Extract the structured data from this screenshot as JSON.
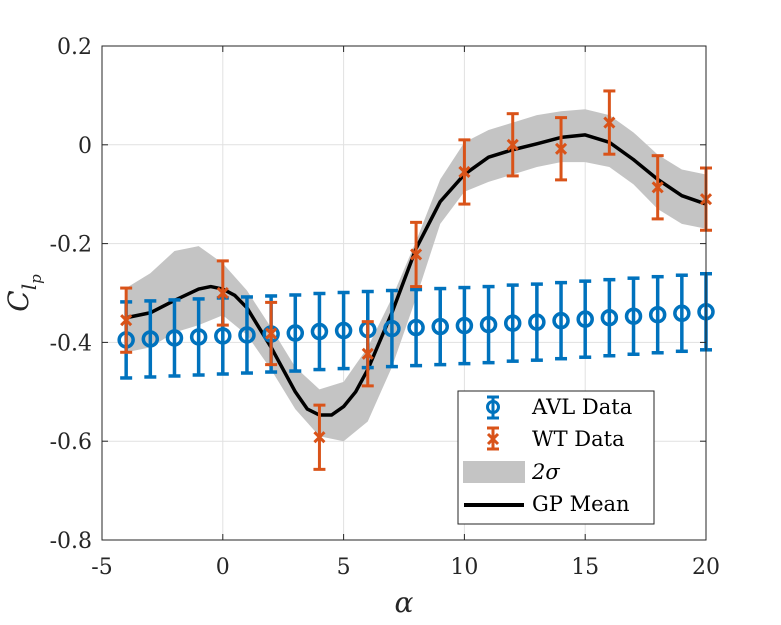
{
  "chart_data": {
    "type": "scatter",
    "xlabel": "α",
    "ylabel": "C_lp",
    "xlim": [
      -5,
      20
    ],
    "ylim": [
      -0.8,
      0.2
    ],
    "xticks": [
      "-5",
      "0",
      "5",
      "10",
      "15",
      "20"
    ],
    "yticks": [
      "0.2",
      "0",
      "-0.2",
      "-0.4",
      "-0.6",
      "-0.8"
    ],
    "grid": true,
    "legend_position": "bottom-right",
    "colors": {
      "avl": "#0072BD",
      "wt": "#D95319",
      "band": "#C4C4C4",
      "mean": "#000000"
    },
    "series": [
      {
        "name": "AVL Data",
        "marker": "circle",
        "x": [
          -4,
          -3,
          -2,
          -1,
          0,
          1,
          2,
          3,
          4,
          5,
          6,
          7,
          8,
          9,
          10,
          11,
          12,
          13,
          14,
          15,
          16,
          17,
          18,
          19,
          20
        ],
        "y": [
          -0.395,
          -0.393,
          -0.391,
          -0.389,
          -0.387,
          -0.385,
          -0.383,
          -0.381,
          -0.378,
          -0.376,
          -0.374,
          -0.372,
          -0.37,
          -0.368,
          -0.366,
          -0.364,
          -0.361,
          -0.359,
          -0.356,
          -0.353,
          -0.35,
          -0.347,
          -0.344,
          -0.341,
          -0.338
        ],
        "err": 0.077
      },
      {
        "name": "WT Data",
        "marker": "x",
        "x": [
          -4,
          0,
          2,
          4,
          6,
          8,
          10,
          12,
          14,
          16,
          18,
          20
        ],
        "y": [
          -0.355,
          -0.3,
          -0.382,
          -0.592,
          -0.423,
          -0.222,
          -0.055,
          0.0,
          -0.008,
          0.045,
          -0.086,
          -0.11
        ],
        "err": [
          0.065,
          0.065,
          0.063,
          0.065,
          0.065,
          0.065,
          0.065,
          0.063,
          0.063,
          0.064,
          0.064,
          0.063
        ]
      },
      {
        "name": "2σ",
        "type": "area",
        "x": [
          -4,
          -3,
          -2,
          -1,
          0,
          1,
          2,
          3,
          4,
          5,
          6,
          7,
          8,
          9,
          10,
          11,
          12,
          13,
          14,
          15,
          16,
          17,
          18,
          19,
          20
        ],
        "upper": [
          -0.29,
          -0.26,
          -0.215,
          -0.205,
          -0.24,
          -0.295,
          -0.37,
          -0.45,
          -0.495,
          -0.48,
          -0.41,
          -0.31,
          -0.195,
          -0.07,
          0.005,
          0.03,
          0.045,
          0.06,
          0.068,
          0.072,
          0.06,
          0.025,
          -0.02,
          -0.05,
          -0.06
        ],
        "lower": [
          -0.42,
          -0.41,
          -0.38,
          -0.365,
          -0.345,
          -0.385,
          -0.455,
          -0.535,
          -0.59,
          -0.6,
          -0.56,
          -0.45,
          -0.31,
          -0.16,
          -0.095,
          -0.075,
          -0.06,
          -0.045,
          -0.035,
          -0.035,
          -0.045,
          -0.08,
          -0.13,
          -0.16,
          -0.17
        ]
      },
      {
        "name": "GP Mean",
        "type": "line",
        "x": [
          -4,
          -3,
          -2,
          -1,
          -0.5,
          0,
          0.5,
          1,
          2,
          3,
          3.5,
          4,
          4.5,
          5,
          5.5,
          6,
          7,
          8,
          9,
          10,
          11,
          12,
          13,
          14,
          15,
          16,
          17,
          18,
          19,
          20
        ],
        "y": [
          -0.35,
          -0.34,
          -0.315,
          -0.292,
          -0.287,
          -0.292,
          -0.305,
          -0.33,
          -0.41,
          -0.5,
          -0.535,
          -0.547,
          -0.547,
          -0.53,
          -0.5,
          -0.455,
          -0.34,
          -0.21,
          -0.115,
          -0.06,
          -0.025,
          -0.01,
          0.002,
          0.015,
          0.02,
          0.005,
          -0.03,
          -0.07,
          -0.103,
          -0.12
        ]
      }
    ]
  }
}
